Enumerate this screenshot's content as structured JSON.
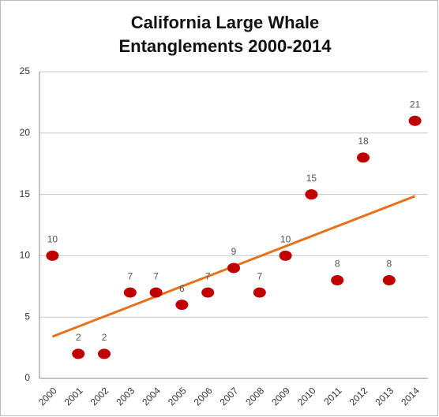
{
  "chart_data": {
    "type": "scatter",
    "title": [
      "California Large Whale",
      "Entanglements 2000-2014"
    ],
    "categories": [
      "2000",
      "2001",
      "2002",
      "2003",
      "2004",
      "2005",
      "2006",
      "2007",
      "2008",
      "2009",
      "2010",
      "2011",
      "2012",
      "2013",
      "2014"
    ],
    "values": [
      10,
      2,
      2,
      7,
      7,
      6,
      7,
      9,
      7,
      10,
      15,
      8,
      18,
      8,
      21
    ],
    "color": "#c00000",
    "ylim": [
      0,
      25
    ],
    "yticks": [
      0,
      5,
      10,
      15,
      20,
      25
    ],
    "grid": true,
    "data_labels": true,
    "trendline": {
      "type": "linear",
      "color": "#e8711c"
    }
  }
}
